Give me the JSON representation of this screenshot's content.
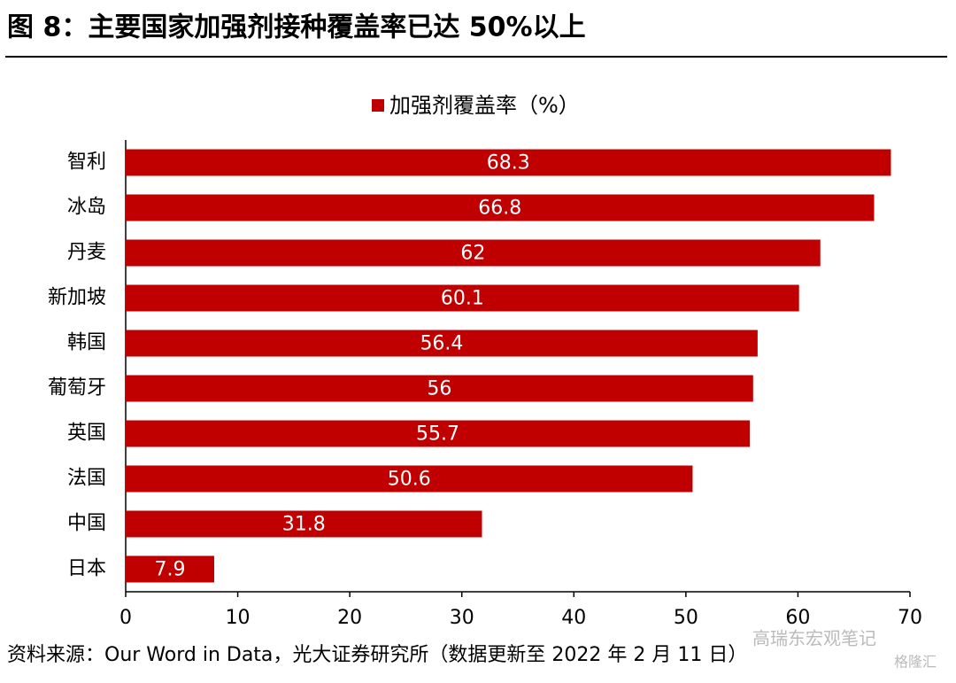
{
  "chart_data": {
    "type": "barh",
    "title": "图 8：主要国家加强剂接种覆盖率已达 50%以上",
    "categories": [
      "智利",
      "冰岛",
      "丹麦",
      "新加坡",
      "韩国",
      "葡萄牙",
      "英国",
      "法国",
      "中国",
      "日本"
    ],
    "series": [
      {
        "name": "加强剂覆盖率（%）",
        "color": "#c00000",
        "values": [
          68.3,
          66.8,
          62,
          60.1,
          56.4,
          56,
          55.7,
          50.6,
          31.8,
          7.9
        ]
      }
    ],
    "xlim": [
      0,
      70
    ],
    "xticks": [
      0,
      10,
      20,
      30,
      40,
      50,
      60,
      70
    ],
    "legend": "top",
    "source": "资料来源：Our Word in Data，光大证券研究所（数据更新至 2022 年 2 月 11 日）",
    "watermarks": [
      "高瑞东宏观笔记",
      "格隆汇"
    ]
  }
}
